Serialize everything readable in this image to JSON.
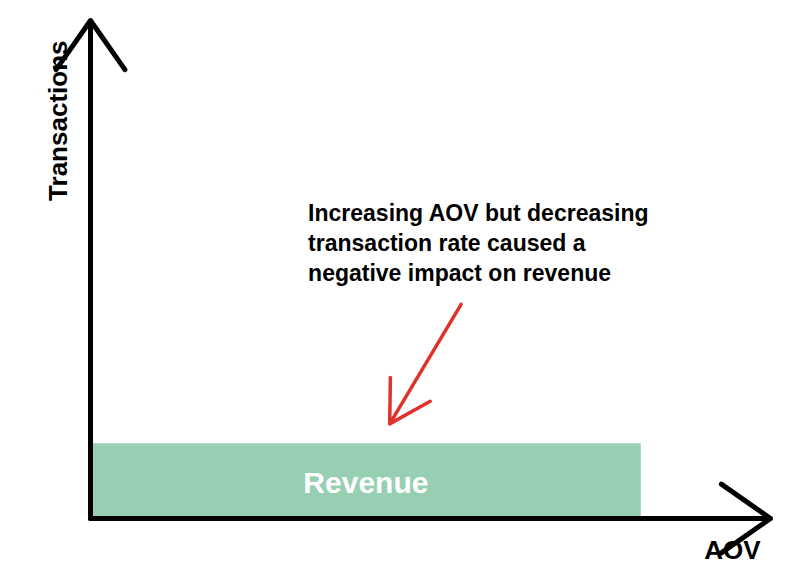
{
  "chart_data": {
    "type": "rect",
    "x": [
      81
    ],
    "values": [
      15
    ],
    "bar_labels": [
      "Revenue"
    ],
    "color": "#97cfb2",
    "xlabel": "AOV",
    "ylabel": "Transactions",
    "annotations": [
      {
        "text": "Increasing AOV but decreasing\ntransaction rate caused a\nnegative impact on revenue",
        "color": "#e0312b"
      }
    ],
    "xlim": [
      0,
      100
    ],
    "ylim": [
      0,
      100
    ],
    "xticks": [],
    "yticks": [],
    "tick_labels": false
  }
}
